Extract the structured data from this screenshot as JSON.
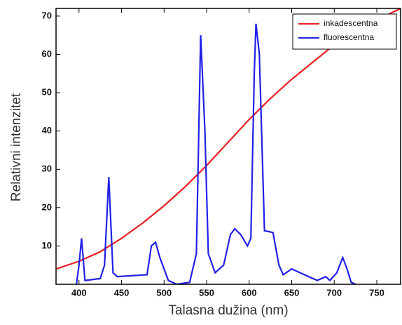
{
  "chart_data": {
    "type": "line",
    "x_label": "Talasna dužina (nm)",
    "y_label": "Relativni intenzitet",
    "xlim": [
      373,
      778
    ],
    "ylim": [
      0,
      72
    ],
    "xticks": [
      400,
      450,
      500,
      550,
      600,
      650,
      700,
      750
    ],
    "yticks": [
      10,
      20,
      30,
      40,
      50,
      60,
      70
    ],
    "legend": "upper right",
    "series": [
      {
        "name": "inkadescentna",
        "color": "#e82020",
        "x": [
          373,
          400,
          425,
          450,
          475,
          500,
          525,
          550,
          575,
          600,
          625,
          650,
          675,
          700,
          725,
          750,
          778
        ],
        "values": [
          4,
          6,
          8.5,
          12,
          16,
          20.5,
          25.5,
          31,
          37,
          43,
          48.5,
          53.5,
          58,
          62.5,
          66,
          69,
          72
        ]
      },
      {
        "name": "fluorescentna",
        "color": "#2020e8",
        "x": [
          397,
          400,
          403,
          407,
          425,
          430,
          435,
          440,
          445,
          480,
          485,
          490,
          495,
          505,
          515,
          530,
          538,
          543,
          548,
          552,
          560,
          570,
          578,
          583,
          590,
          598,
          602,
          606,
          608,
          612,
          618,
          628,
          635,
          640,
          650,
          665,
          680,
          690,
          695,
          703,
          710,
          715,
          720,
          725
        ],
        "values": [
          0,
          5,
          12,
          1,
          1.5,
          5,
          28,
          3,
          2,
          2.5,
          10,
          11,
          7,
          1,
          0,
          0.5,
          8,
          65,
          40,
          8,
          3,
          5,
          13,
          14.5,
          13,
          10,
          12,
          55,
          68,
          60,
          14,
          13.5,
          5,
          2.5,
          4,
          2.5,
          1,
          2,
          1,
          3,
          7,
          4,
          0.5,
          0
        ]
      }
    ]
  }
}
